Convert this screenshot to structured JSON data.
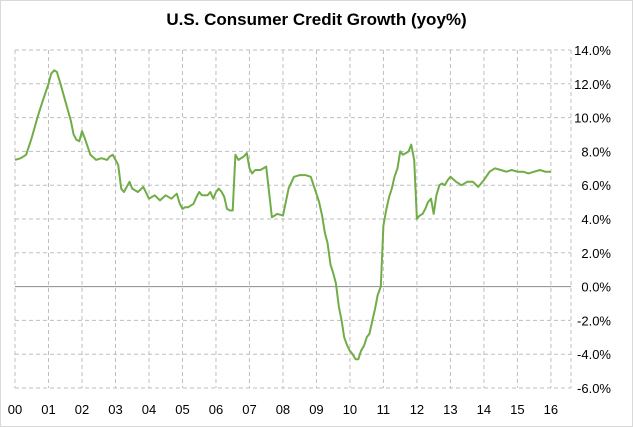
{
  "chart_data": {
    "type": "line",
    "title": "U.S. Consumer Credit Growth (yoy%)",
    "xlabel": "",
    "ylabel": "",
    "x_tick_labels": [
      "00",
      "01",
      "02",
      "03",
      "04",
      "05",
      "06",
      "07",
      "08",
      "09",
      "10",
      "11",
      "12",
      "13",
      "14",
      "15",
      "16"
    ],
    "y_tick_labels": [
      "14.0%",
      "12.0%",
      "10.0%",
      "8.0%",
      "6.0%",
      "4.0%",
      "2.0%",
      "0.0%",
      "-2.0%",
      "-4.0%",
      "-6.0%"
    ],
    "ylim": [
      -6,
      14
    ],
    "xlim": [
      2000,
      2016.6
    ],
    "y_axis_side": "right",
    "grid": "dashed horizontal and vertical",
    "series": [
      {
        "name": "U.S. Consumer Credit Growth (yoy%)",
        "color": "#70ad47",
        "x": [
          2000.0,
          2000.17,
          2000.33,
          2000.5,
          2000.67,
          2000.83,
          2001.0,
          2001.08,
          2001.17,
          2001.25,
          2001.33,
          2001.5,
          2001.67,
          2001.75,
          2001.83,
          2001.92,
          2002.0,
          2002.08,
          2002.25,
          2002.42,
          2002.58,
          2002.75,
          2002.83,
          2002.92,
          2003.0,
          2003.08,
          2003.17,
          2003.25,
          2003.42,
          2003.5,
          2003.67,
          2003.83,
          2004.0,
          2004.17,
          2004.33,
          2004.5,
          2004.67,
          2004.83,
          2004.92,
          2005.0,
          2005.08,
          2005.17,
          2005.33,
          2005.42,
          2005.5,
          2005.58,
          2005.75,
          2005.83,
          2005.92,
          2006.0,
          2006.08,
          2006.17,
          2006.25,
          2006.33,
          2006.42,
          2006.5,
          2006.58,
          2006.67,
          2006.83,
          2006.92,
          2007.0,
          2007.08,
          2007.17,
          2007.33,
          2007.5,
          2007.67,
          2007.83,
          2008.0,
          2008.17,
          2008.33,
          2008.5,
          2008.67,
          2008.83,
          2009.0,
          2009.08,
          2009.17,
          2009.25,
          2009.33,
          2009.42,
          2009.5,
          2009.58,
          2009.67,
          2009.75,
          2009.83,
          2009.92,
          2010.0,
          2010.08,
          2010.17,
          2010.25,
          2010.33,
          2010.42,
          2010.5,
          2010.58,
          2010.67,
          2010.75,
          2010.83,
          2010.92,
          2011.0,
          2011.08,
          2011.17,
          2011.25,
          2011.33,
          2011.42,
          2011.5,
          2011.58,
          2011.67,
          2011.75,
          2011.83,
          2011.92,
          2012.0,
          2012.08,
          2012.17,
          2012.25,
          2012.33,
          2012.42,
          2012.5,
          2012.58,
          2012.67,
          2012.75,
          2012.83,
          2012.92,
          2013.0,
          2013.17,
          2013.33,
          2013.5,
          2013.67,
          2013.83,
          2014.0,
          2014.17,
          2014.33,
          2014.5,
          2014.67,
          2014.83,
          2015.0,
          2015.17,
          2015.33,
          2015.5,
          2015.67,
          2015.83,
          2016.0
        ],
        "values": [
          7.5,
          7.6,
          7.8,
          8.8,
          10.0,
          11.0,
          12.0,
          12.6,
          12.8,
          12.7,
          12.2,
          11.0,
          9.8,
          9.0,
          8.7,
          8.6,
          9.2,
          8.8,
          7.8,
          7.5,
          7.6,
          7.5,
          7.7,
          7.8,
          7.5,
          7.2,
          5.8,
          5.6,
          6.2,
          5.8,
          5.6,
          5.9,
          5.2,
          5.4,
          5.1,
          5.4,
          5.2,
          5.5,
          4.9,
          4.6,
          4.7,
          4.7,
          4.9,
          5.3,
          5.6,
          5.4,
          5.4,
          5.6,
          5.2,
          5.6,
          5.8,
          5.6,
          5.3,
          4.6,
          4.5,
          4.5,
          7.8,
          7.5,
          7.7,
          7.9,
          7.0,
          6.7,
          6.9,
          6.9,
          7.1,
          4.1,
          4.3,
          4.2,
          5.8,
          6.5,
          6.6,
          6.6,
          6.5,
          5.5,
          5.0,
          4.2,
          3.2,
          2.6,
          1.3,
          0.8,
          0.2,
          -1.2,
          -2.0,
          -3.0,
          -3.5,
          -3.8,
          -4.0,
          -4.3,
          -4.3,
          -3.8,
          -3.5,
          -3.0,
          -2.8,
          -2.0,
          -1.3,
          -0.5,
          0.0,
          3.6,
          4.5,
          5.3,
          5.8,
          6.5,
          7.0,
          8.0,
          7.8,
          7.9,
          8.0,
          8.4,
          7.5,
          4.0,
          4.2,
          4.3,
          4.6,
          5.0,
          5.2,
          4.3,
          5.4,
          6.0,
          6.1,
          6.0,
          6.3,
          6.5,
          6.2,
          6.0,
          6.2,
          6.2,
          5.9,
          6.3,
          6.8,
          7.0,
          6.9,
          6.8,
          6.9,
          6.8,
          6.8,
          6.7,
          6.8,
          6.9,
          6.8,
          6.8
        ]
      }
    ]
  }
}
